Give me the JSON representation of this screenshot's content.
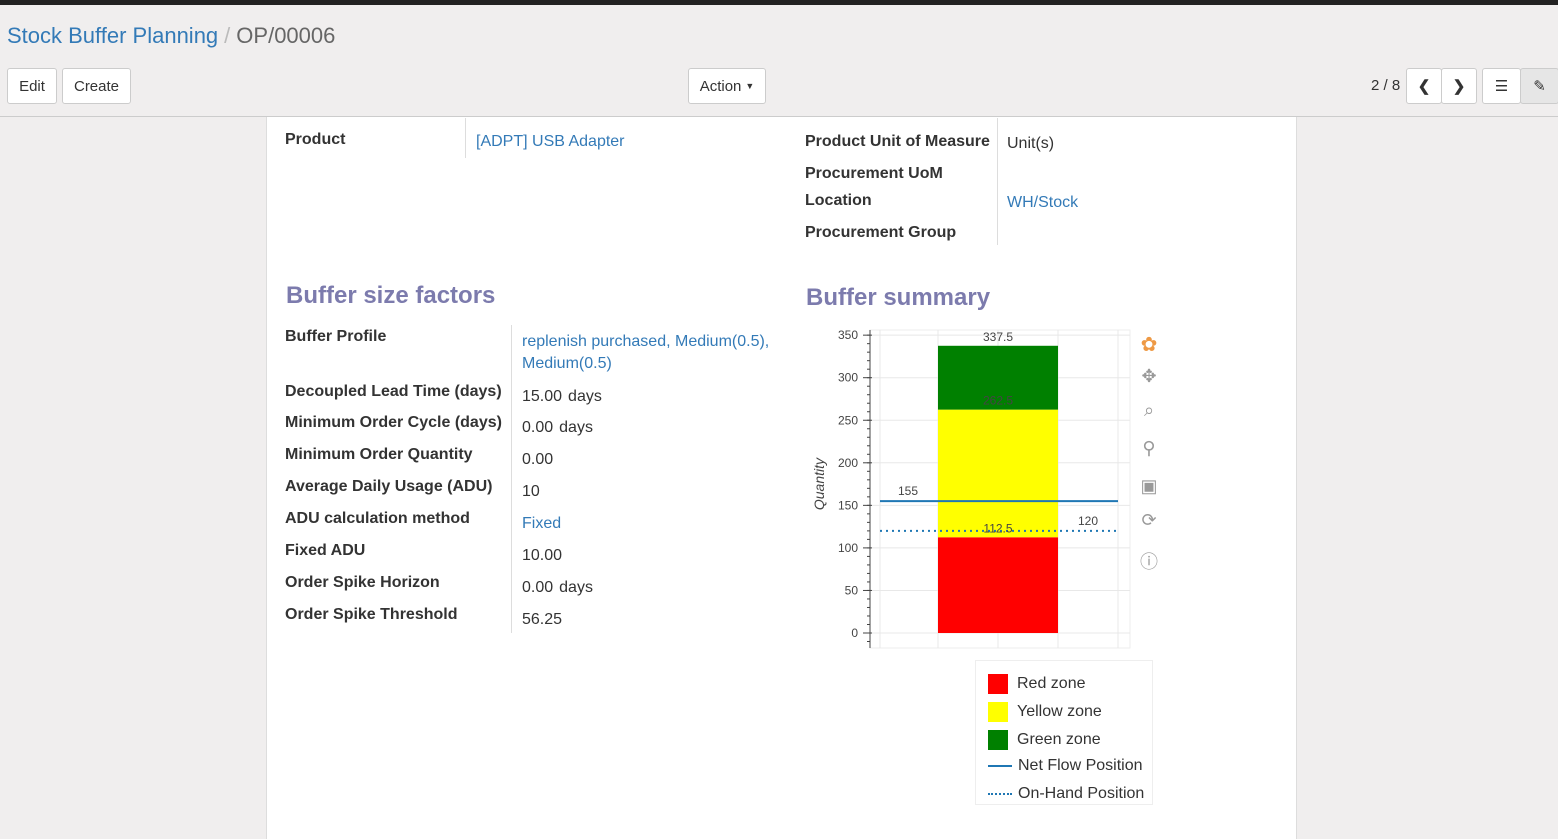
{
  "breadcrumb": {
    "parent": "Stock Buffer Planning",
    "current": "OP/00006"
  },
  "toolbar": {
    "edit": "Edit",
    "create": "Create",
    "action": "Action",
    "pager": "2 / 8"
  },
  "fields_top_left": [
    {
      "label": "Product",
      "value": "[ADPT] USB Adapter",
      "link": true
    }
  ],
  "fields_top_right": [
    {
      "label": "Product Unit of Measure",
      "value": "Unit(s)"
    },
    {
      "label": "Procurement UoM",
      "value": ""
    },
    {
      "label": "Location",
      "value": "WH/Stock"
    },
    {
      "label": "Procurement Group",
      "value": ""
    }
  ],
  "buffer_factors": {
    "title": "Buffer size factors",
    "rows": [
      {
        "label": "Buffer Profile",
        "value": "replenish purchased, Medium(0.5), Medium(0.5)",
        "unit": ""
      },
      {
        "label": "Decoupled Lead Time (days)",
        "value": "15.00",
        "unit": "days"
      },
      {
        "label": "Minimum Order Cycle (days)",
        "value": "0.00",
        "unit": "days"
      },
      {
        "label": "Minimum Order Quantity",
        "value": "0.00",
        "unit": ""
      },
      {
        "label": "Average Daily Usage (ADU)",
        "value": "10",
        "unit": ""
      },
      {
        "label": "ADU calculation method",
        "value": "Fixed",
        "unit": ""
      },
      {
        "label": "Fixed ADU",
        "value": "10.00",
        "unit": ""
      },
      {
        "label": "Order Spike Horizon",
        "value": "0.00",
        "unit": "days"
      },
      {
        "label": "Order Spike Threshold",
        "value": "56.25",
        "unit": ""
      }
    ]
  },
  "buffer_summary": {
    "title": "Buffer summary"
  },
  "chart_data": {
    "type": "bar",
    "ylabel": "Quantity",
    "ylim": [
      -10,
      355
    ],
    "yticks": [
      0,
      50,
      100,
      150,
      200,
      250,
      300,
      350
    ],
    "stack": [
      {
        "name": "Red zone",
        "from": 0,
        "to": 112.5,
        "color": "#ff0000",
        "label": "112.5"
      },
      {
        "name": "Yellow zone",
        "from": 112.5,
        "to": 262.5,
        "color": "#ffff00",
        "label": "262.5"
      },
      {
        "name": "Green zone",
        "from": 262.5,
        "to": 337.5,
        "color": "#008000",
        "label": "337.5"
      }
    ],
    "lines": [
      {
        "name": "Net Flow Position",
        "value": 155,
        "label": "155",
        "style": "solid",
        "color": "#1f77b4"
      },
      {
        "name": "On-Hand Position",
        "value": 120,
        "label": "120",
        "style": "dotted",
        "color": "#1f77b4"
      }
    ],
    "legend": "bottom",
    "grid": true
  }
}
